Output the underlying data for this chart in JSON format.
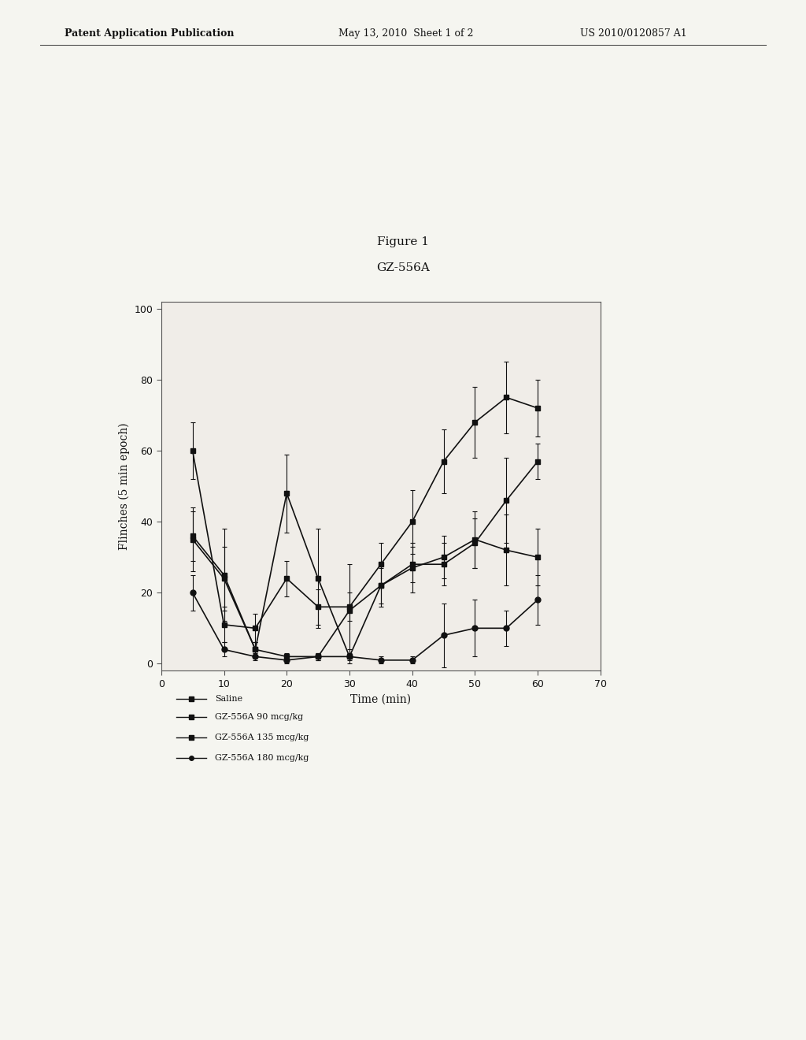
{
  "title": "Figure 1",
  "subtitle": "GZ-556A",
  "xlabel": "Time (min)",
  "ylabel": "Flinches (5 min epoch)",
  "xlim": [
    0,
    70
  ],
  "ylim": [
    -2,
    102
  ],
  "xticks": [
    0,
    10,
    20,
    30,
    40,
    50,
    60,
    70
  ],
  "yticks": [
    0,
    20,
    40,
    60,
    80,
    100
  ],
  "background_color": "#f5f5f0",
  "header_left": "Patent Application Publication",
  "header_mid": "May 13, 2010  Sheet 1 of 2",
  "header_right": "US 2010/0120857 A1",
  "series": [
    {
      "label": "Saline",
      "x": [
        5,
        10,
        15,
        20,
        25,
        30,
        35,
        40,
        45,
        50,
        55,
        60
      ],
      "y": [
        60,
        11,
        10,
        24,
        16,
        16,
        28,
        40,
        57,
        68,
        75,
        72
      ],
      "yerr": [
        8,
        5,
        4,
        5,
        5,
        4,
        6,
        9,
        9,
        10,
        10,
        8
      ],
      "marker": "s"
    },
    {
      "label": "GZ-556A 90 mcg/kg",
      "x": [
        5,
        10,
        15,
        20,
        25,
        30,
        35,
        40,
        45,
        50,
        55,
        60
      ],
      "y": [
        36,
        25,
        4,
        2,
        2,
        15,
        22,
        28,
        28,
        34,
        46,
        57
      ],
      "yerr": [
        7,
        13,
        2,
        1,
        1,
        13,
        5,
        5,
        6,
        7,
        12,
        5
      ],
      "marker": "s"
    },
    {
      "label": "GZ-556A 135 mcg/kg",
      "x": [
        5,
        10,
        15,
        20,
        25,
        30,
        35,
        40,
        45,
        50,
        55,
        60
      ],
      "y": [
        35,
        24,
        4,
        48,
        24,
        2,
        22,
        27,
        30,
        35,
        32,
        30
      ],
      "yerr": [
        9,
        9,
        2,
        11,
        14,
        2,
        6,
        7,
        6,
        8,
        10,
        8
      ],
      "marker": "s"
    },
    {
      "label": "GZ-556A 180 mcg/kg",
      "x": [
        5,
        10,
        15,
        20,
        25,
        30,
        35,
        40,
        45,
        50,
        55,
        60
      ],
      "y": [
        20,
        4,
        2,
        1,
        2,
        2,
        1,
        1,
        8,
        10,
        10,
        18
      ],
      "yerr": [
        5,
        2,
        1,
        1,
        1,
        1,
        1,
        1,
        9,
        8,
        5,
        7
      ],
      "marker": "o"
    }
  ]
}
